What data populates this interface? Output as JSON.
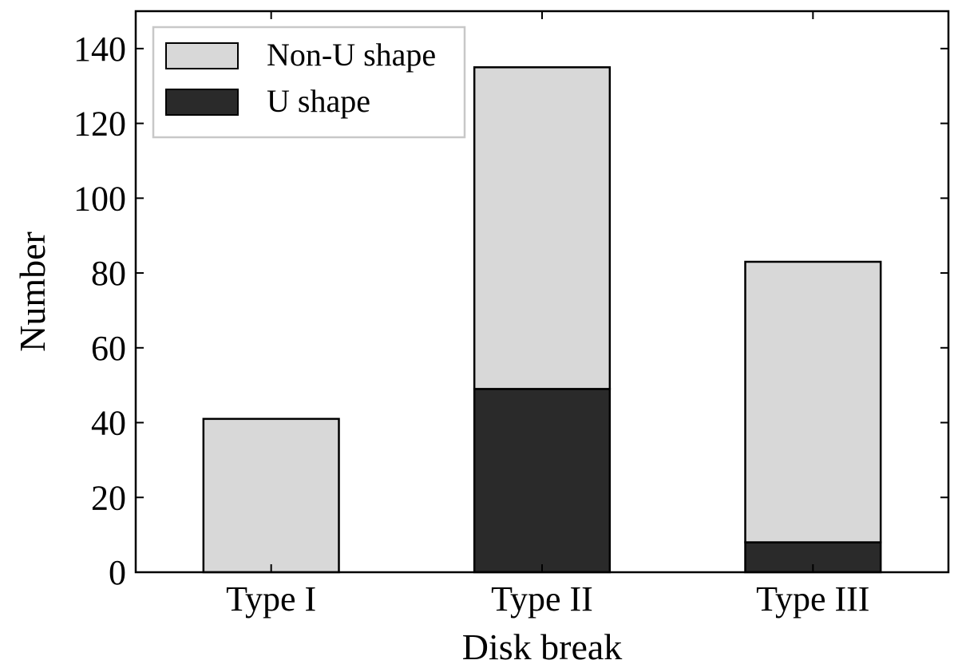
{
  "chart_data": {
    "type": "bar",
    "stacked": true,
    "title": "",
    "xlabel": "Disk break",
    "ylabel": "Number",
    "categories": [
      "Type I",
      "Type II",
      "Type III"
    ],
    "series": [
      {
        "name": "U shape",
        "values": [
          0,
          49,
          8
        ],
        "color": "#2a2a2a"
      },
      {
        "name": "Non-U shape",
        "values": [
          41,
          86,
          75
        ],
        "color": "#d8d8d8"
      }
    ],
    "totals": [
      41,
      135,
      83
    ],
    "ylim": [
      0,
      150
    ],
    "yticks": [
      0,
      20,
      40,
      60,
      80,
      100,
      120,
      140
    ],
    "grid": false,
    "legend": {
      "position": "top-left",
      "order": [
        "Non-U shape",
        "U shape"
      ]
    }
  }
}
